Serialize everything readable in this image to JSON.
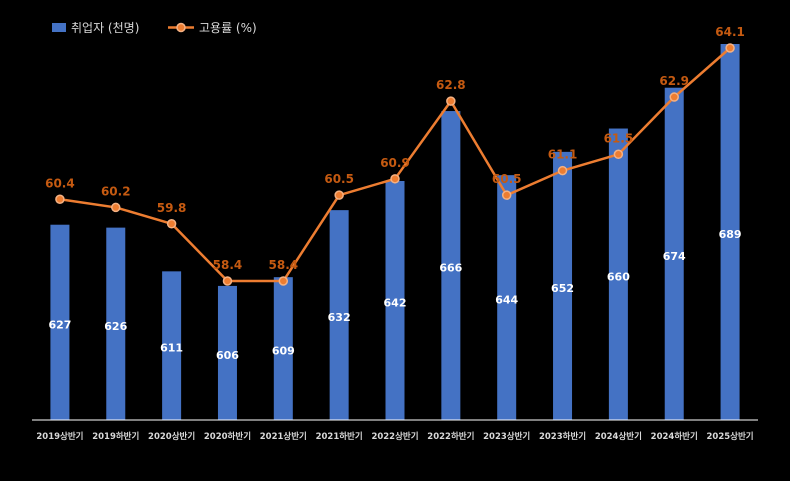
{
  "legend": {
    "bar_label": "취업자 (천명)",
    "line_label": "고용률 (%)"
  },
  "colors": {
    "background": "#000000",
    "bar": "#4472C4",
    "line": "#ED7D31",
    "line_label": "#C55A11",
    "bar_value": "#FFFFFF",
    "axis_text": "#D9D9D9",
    "axis_line": "#FFFFFF"
  },
  "chart_data": {
    "type": "bar",
    "categories": [
      "2019상반기",
      "2019하반기",
      "2020상반기",
      "2020하반기",
      "2021상반기",
      "2021하반기",
      "2022상반기",
      "2022하반기",
      "2023상반기",
      "2023하반기",
      "2024상반기",
      "2024하반기",
      "2025상반기"
    ],
    "series": [
      {
        "name": "취업자 (천명)",
        "type": "bar",
        "axis": "left",
        "values": [
          627,
          626,
          611,
          606,
          609,
          632,
          642,
          666,
          644,
          652,
          660,
          674,
          689
        ]
      },
      {
        "name": "고용률 (%)",
        "type": "line",
        "axis": "right",
        "values": [
          60.4,
          60.2,
          59.8,
          58.4,
          58.4,
          60.5,
          60.9,
          62.8,
          60.5,
          61.1,
          61.5,
          62.9,
          64.1
        ]
      }
    ],
    "legend": "top-left",
    "grid": false
  }
}
